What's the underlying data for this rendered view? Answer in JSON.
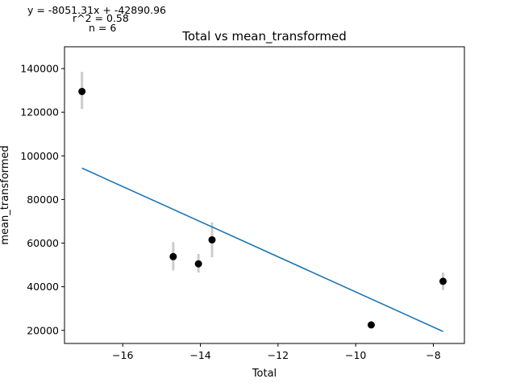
{
  "chart_data": {
    "type": "scatter",
    "title": "Total vs mean_transformed",
    "xlabel": "Total",
    "ylabel": "mean_transformed",
    "xlim": [
      -17.5,
      -7.2
    ],
    "ylim": [
      14000,
      150000
    ],
    "x_ticks": [
      -16,
      -14,
      -12,
      -10,
      -8
    ],
    "x_tick_labels": [
      "−16",
      "−14",
      "−12",
      "−10",
      "−8"
    ],
    "y_ticks": [
      20000,
      40000,
      60000,
      80000,
      100000,
      120000,
      140000
    ],
    "y_tick_labels": [
      "20000",
      "40000",
      "60000",
      "80000",
      "100000",
      "120000",
      "140000"
    ],
    "grid": false,
    "annotations": [
      "y = -8051.31x + -42890.96",
      "r^2 = 0.58",
      "n = 6"
    ],
    "points": [
      {
        "x": -17.05,
        "y": 129500,
        "err_low": 121500,
        "err_high": 138500
      },
      {
        "x": -14.7,
        "y": 53800,
        "err_low": 47500,
        "err_high": 60500
      },
      {
        "x": -14.05,
        "y": 50500,
        "err_low": 46500,
        "err_high": 55000
      },
      {
        "x": -13.7,
        "y": 61500,
        "err_low": 53500,
        "err_high": 69500
      },
      {
        "x": -9.6,
        "y": 22500,
        "err_low": 22500,
        "err_high": 22500
      },
      {
        "x": -7.75,
        "y": 42500,
        "err_low": 38500,
        "err_high": 46500
      }
    ],
    "fit_line": {
      "slope": -8051.31,
      "intercept": -42890.96,
      "x_range": [
        -17.05,
        -7.75
      ]
    },
    "colors": {
      "points": "#000000",
      "error_bars": "#cccccc",
      "fit_line": "#1f77b4"
    }
  }
}
